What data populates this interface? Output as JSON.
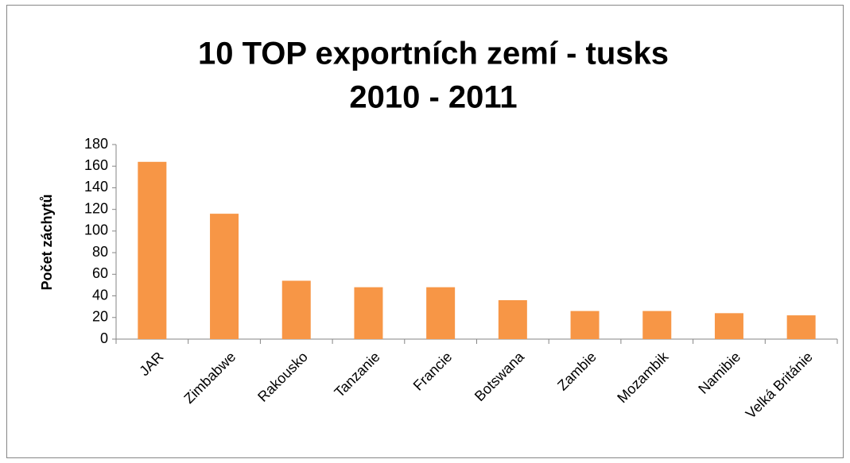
{
  "chart_data": {
    "type": "bar",
    "title": [
      "10 TOP exportních zemí  -  tusks",
      "2010  -  2011"
    ],
    "y_label": "Počet záchytů",
    "categories": [
      "JAR",
      "Zimbabwe",
      "Rakousko",
      "Tanzanie",
      "Francie",
      "Botswana",
      "Zambie",
      "Mozambik",
      "Namibie",
      "Velká Británie"
    ],
    "values": [
      164,
      116,
      54,
      48,
      48,
      36,
      26,
      26,
      24,
      22
    ],
    "color": "#f79646",
    "ylim": [
      0,
      180
    ],
    "yticks": [
      0,
      20,
      40,
      60,
      80,
      100,
      120,
      140,
      160,
      180
    ],
    "grid": false
  }
}
